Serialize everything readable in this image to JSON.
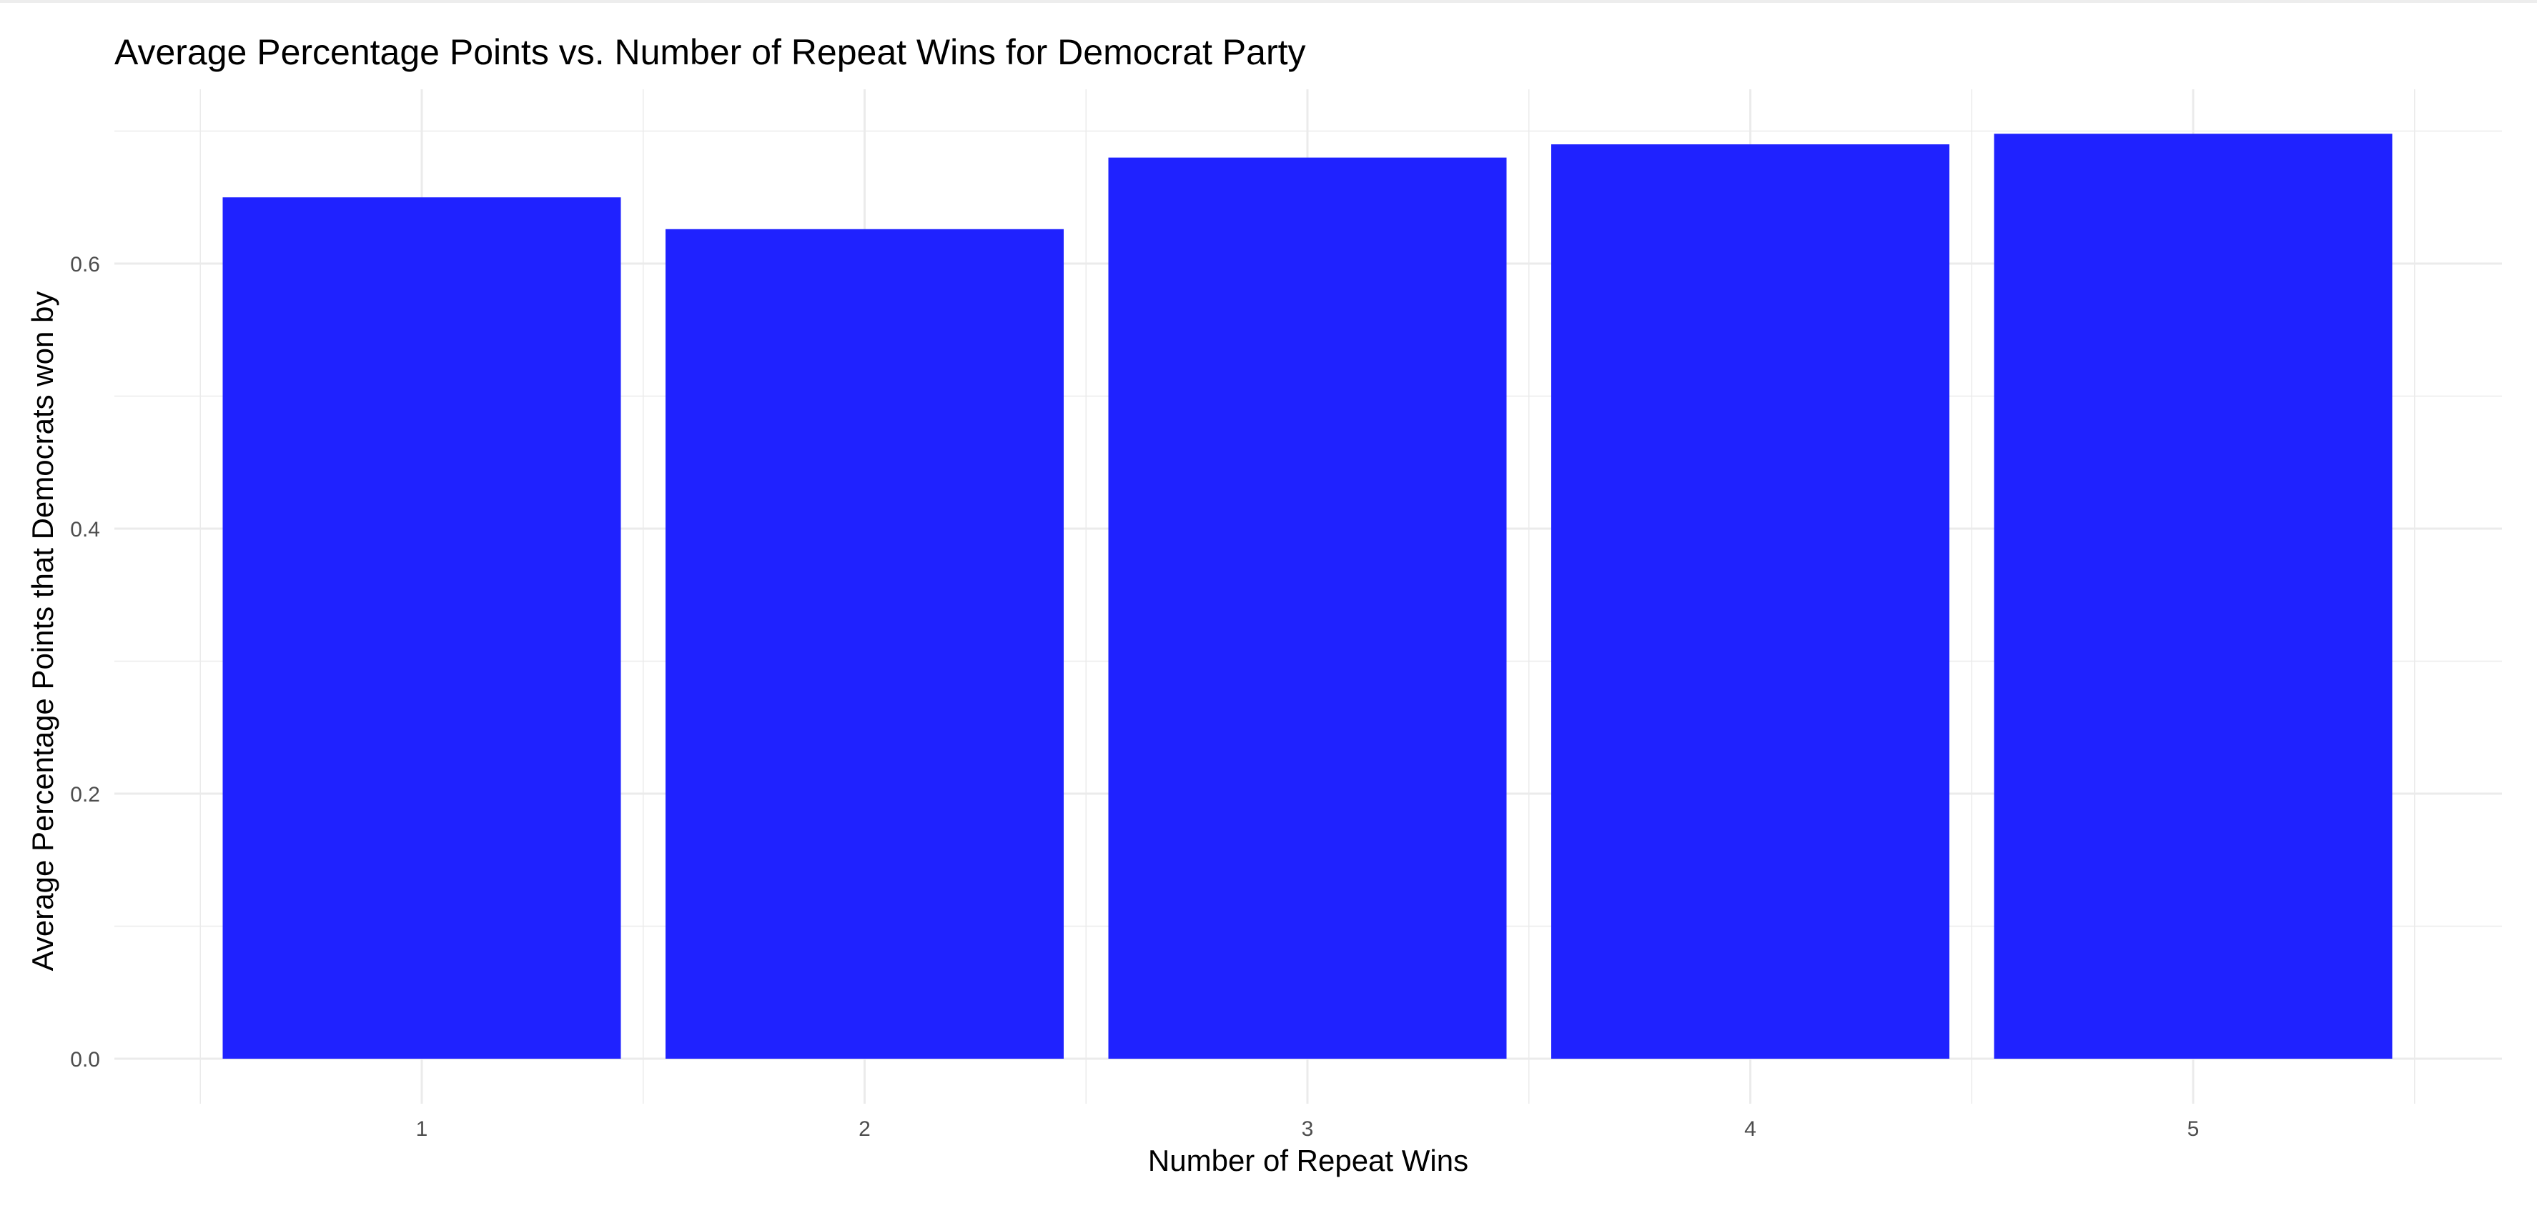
{
  "chart_data": {
    "type": "bar",
    "title": "Average Percentage Points vs. Number of Repeat Wins for Democrat Party",
    "xlabel": "Number of Repeat Wins",
    "ylabel": "Average Percentage Points that Democrats won by",
    "categories": [
      "1",
      "2",
      "3",
      "4",
      "5"
    ],
    "values": [
      0.65,
      0.626,
      0.68,
      0.69,
      0.698
    ],
    "ylim": [
      0,
      0.73
    ],
    "yticks": [
      "0.0",
      "0.2",
      "0.4",
      "0.6"
    ],
    "ytick_values": [
      0,
      0.2,
      0.4,
      0.6
    ],
    "grid": true,
    "bar_color": "#1f22ff",
    "grid_color": "#ebebeb"
  }
}
